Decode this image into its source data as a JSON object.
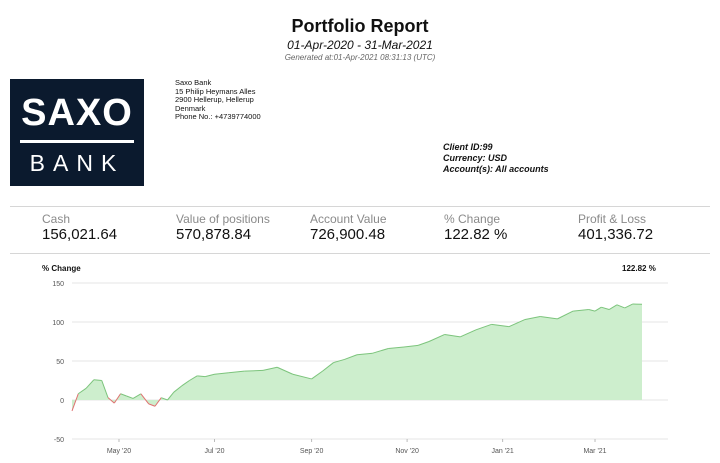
{
  "header": {
    "title": "Portfolio Report",
    "period": "01-Apr-2020 - 31-Mar-2021",
    "generated": "Generated at:01-Apr-2021 08:31:13 (UTC)"
  },
  "logo": {
    "line1": "SAXO",
    "line2": "BANK"
  },
  "bank_address": {
    "name": "Saxo Bank",
    "street": "15 Philip Heymans Alles",
    "city": "2900 Hellerup, Hellerup",
    "country": "Denmark",
    "phone": "Phone No.: +4739774000"
  },
  "client": {
    "id": "Client ID:99",
    "currency": "Currency: USD",
    "accounts": "Account(s): All accounts"
  },
  "kpis": [
    {
      "label": "Cash",
      "value": "156,021.64"
    },
    {
      "label": "Value of positions",
      "value": "570,878.84"
    },
    {
      "label": "Account Value",
      "value": "726,900.48"
    },
    {
      "label": "% Change",
      "value": "122.82 %"
    },
    {
      "label": "Profit & Loss",
      "value": "401,336.72"
    }
  ],
  "chart_data": {
    "type": "area",
    "title": "% Change",
    "current_value": "122.82 %",
    "xlabel": "",
    "ylabel": "",
    "ylim": [
      -50,
      150
    ],
    "yticks": [
      "150",
      "100",
      "50",
      "0",
      "-50"
    ],
    "xticks": [
      {
        "label": "May '20",
        "date": "2020-05-01"
      },
      {
        "label": "Jul '20",
        "date": "2020-07-01"
      },
      {
        "label": "Sep '20",
        "date": "2020-09-01"
      },
      {
        "label": "Nov '20",
        "date": "2020-11-01"
      },
      {
        "label": "Jan '21",
        "date": "2021-01-01"
      },
      {
        "label": "Mar '21",
        "date": "2021-03-01"
      }
    ],
    "x_range": [
      "2020-04-01",
      "2021-03-31"
    ],
    "grid": true,
    "colors": {
      "positive_fill": "#cdeecd",
      "positive_line": "#7cc47c",
      "negative_line": "#e07070"
    },
    "series": [
      {
        "x": [
          "2020-04-01",
          "2020-04-05",
          "2020-04-10",
          "2020-04-15",
          "2020-04-20",
          "2020-04-24",
          "2020-04-28",
          "2020-05-02",
          "2020-05-06",
          "2020-05-10",
          "2020-05-15",
          "2020-05-20",
          "2020-05-24",
          "2020-05-28",
          "2020-06-01",
          "2020-06-05",
          "2020-06-10",
          "2020-06-15",
          "2020-06-20",
          "2020-06-25",
          "2020-07-01",
          "2020-07-10",
          "2020-07-20",
          "2020-08-01",
          "2020-08-10",
          "2020-08-20",
          "2020-09-01",
          "2020-09-08",
          "2020-09-15",
          "2020-09-22",
          "2020-09-30",
          "2020-10-10",
          "2020-10-20",
          "2020-10-30",
          "2020-11-08",
          "2020-11-15",
          "2020-11-25",
          "2020-12-05",
          "2020-12-15",
          "2020-12-25",
          "2021-01-05",
          "2021-01-15",
          "2021-01-25",
          "2021-02-05",
          "2021-02-15",
          "2021-02-25",
          "2021-03-01",
          "2021-03-05",
          "2021-03-10",
          "2021-03-15",
          "2021-03-20",
          "2021-03-25",
          "2021-03-31"
        ],
        "values": [
          -14,
          8,
          15,
          26,
          25,
          3,
          -4,
          8,
          5,
          2,
          8,
          -5,
          -8,
          3,
          0,
          10,
          18,
          25,
          31,
          30,
          33,
          35,
          37,
          38,
          42,
          33,
          27,
          37,
          48,
          52,
          58,
          60,
          66,
          68,
          70,
          75,
          84,
          81,
          90,
          97,
          94,
          103,
          107,
          104,
          114,
          116,
          114,
          119,
          116,
          122,
          118,
          123,
          122.82
        ]
      }
    ]
  }
}
